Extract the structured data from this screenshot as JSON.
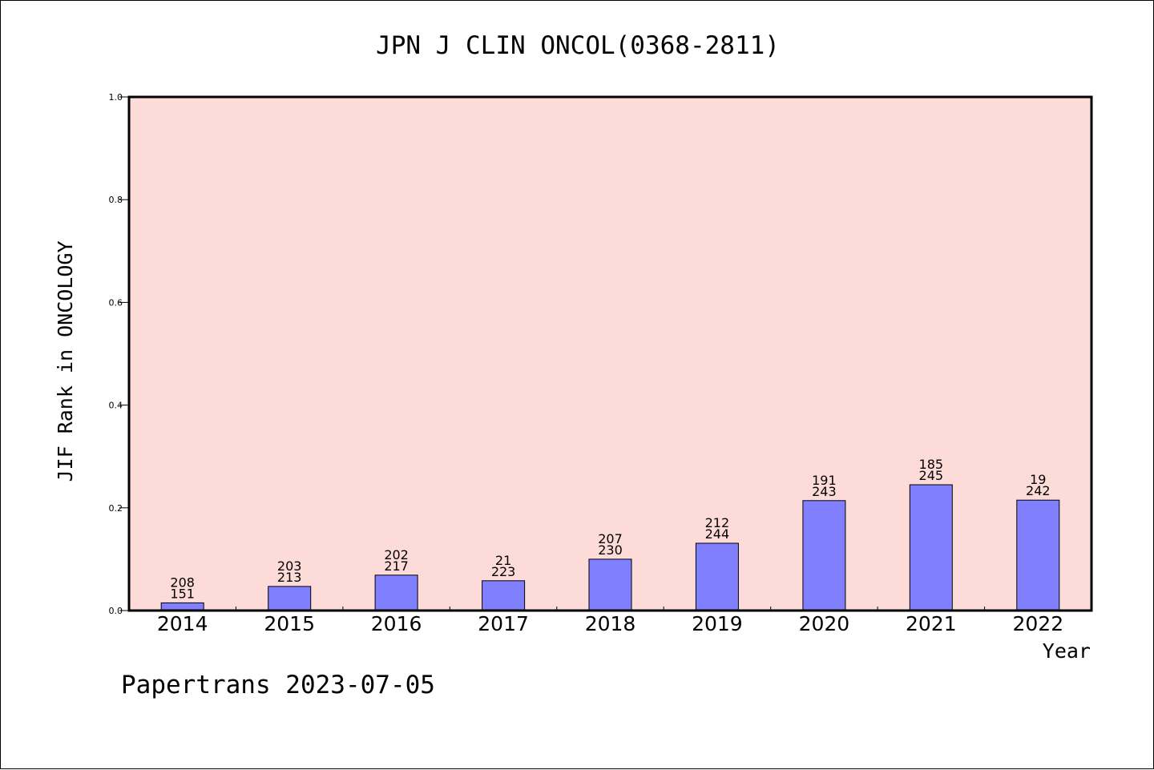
{
  "colors": {
    "plot_background": "#fddbd8",
    "bar_fill": "#8080ff",
    "bar_stroke": "#000000",
    "frame": "#000000"
  },
  "footer": {
    "text": "Papertrans 2023-07-05"
  },
  "chart_data": {
    "type": "bar",
    "title": "JPN J CLIN ONCOL(0368-2811)",
    "xlabel": "Year",
    "ylabel": "JIF Rank in ONCOLOGY",
    "ylim": [
      0,
      1.0
    ],
    "yticks": [
      "0.0",
      "0.2",
      "0.4",
      "0.6",
      "0.8",
      "1.0"
    ],
    "grid": false,
    "categories": [
      "2014",
      "2015",
      "2016",
      "2017",
      "2018",
      "2019",
      "2020",
      "2021",
      "2022"
    ],
    "values": [
      0.015,
      0.047,
      0.069,
      0.058,
      0.1,
      0.131,
      0.214,
      0.245,
      0.215
    ],
    "labels_top": [
      "208",
      "203",
      "202",
      "21",
      "207",
      "212",
      "191",
      "185",
      "19"
    ],
    "labels_bottom": [
      "151",
      "213",
      "217",
      "223",
      "230",
      "244",
      "243",
      "245",
      "242"
    ]
  }
}
